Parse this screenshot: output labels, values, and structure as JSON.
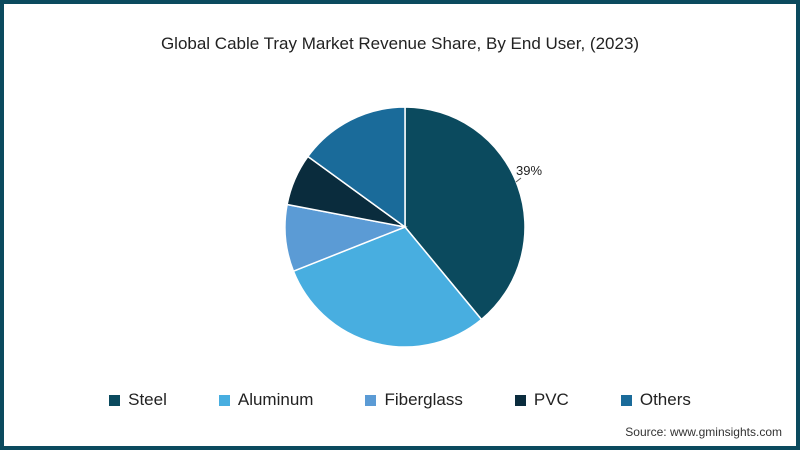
{
  "chart_data": {
    "type": "pie",
    "title": "Global Cable Tray Market Revenue Share, By End User, (2023)",
    "categories": [
      "Steel",
      "Aluminum",
      "Fiberglass",
      "PVC",
      "Others"
    ],
    "values": [
      39,
      30,
      9,
      7,
      15
    ],
    "colors": [
      "#0b4a5e",
      "#48aee0",
      "#5b9bd5",
      "#0a2c3d",
      "#1a6b9a"
    ],
    "data_labels": [
      {
        "category": "Steel",
        "text": "39%"
      }
    ],
    "legend_position": "bottom",
    "start_angle_deg": 0,
    "direction": "clockwise"
  },
  "title": "Global Cable Tray Market Revenue Share, By End User, (2023)",
  "legend": [
    "Steel",
    "Aluminum",
    "Fiberglass",
    "PVC",
    "Others"
  ],
  "label_steel": "39%",
  "source": "Source: www.gminsights.com"
}
